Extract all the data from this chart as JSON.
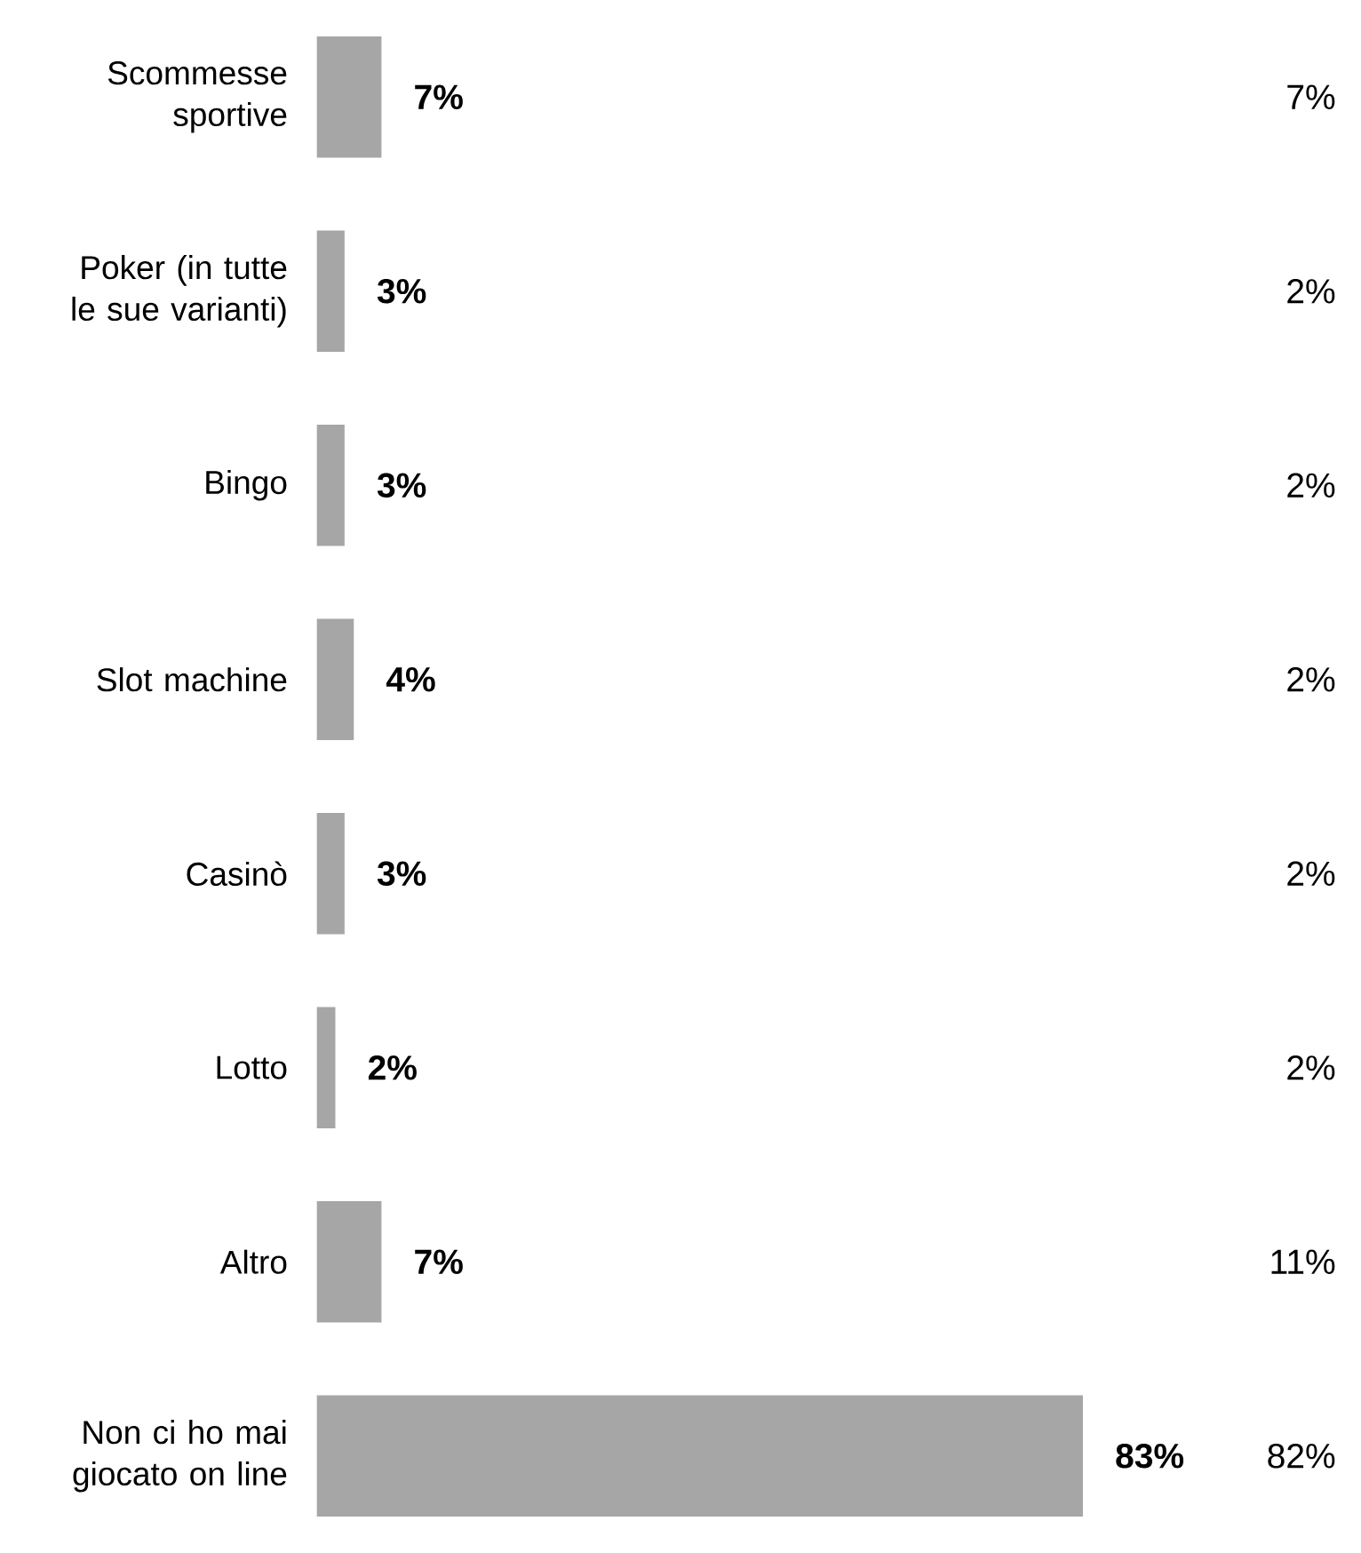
{
  "chart_data": {
    "type": "bar",
    "orientation": "horizontal",
    "color": "#a6a6a6",
    "categories": [
      "Scommesse sportive",
      "Poker (in tutte le sue varianti)",
      "Bingo",
      "Slot machine",
      "Casinò",
      "Lotto",
      "Altro",
      "Non ci ho mai giocato on line"
    ],
    "values": [
      7,
      3,
      3,
      4,
      3,
      2,
      7,
      83
    ],
    "value_labels": [
      "7%",
      "3%",
      "3%",
      "4%",
      "3%",
      "2%",
      "7%",
      "83%"
    ],
    "annotations": [
      "7%",
      "2%",
      "2%",
      "2%",
      "2%",
      "2%",
      "11%",
      "82%"
    ]
  }
}
